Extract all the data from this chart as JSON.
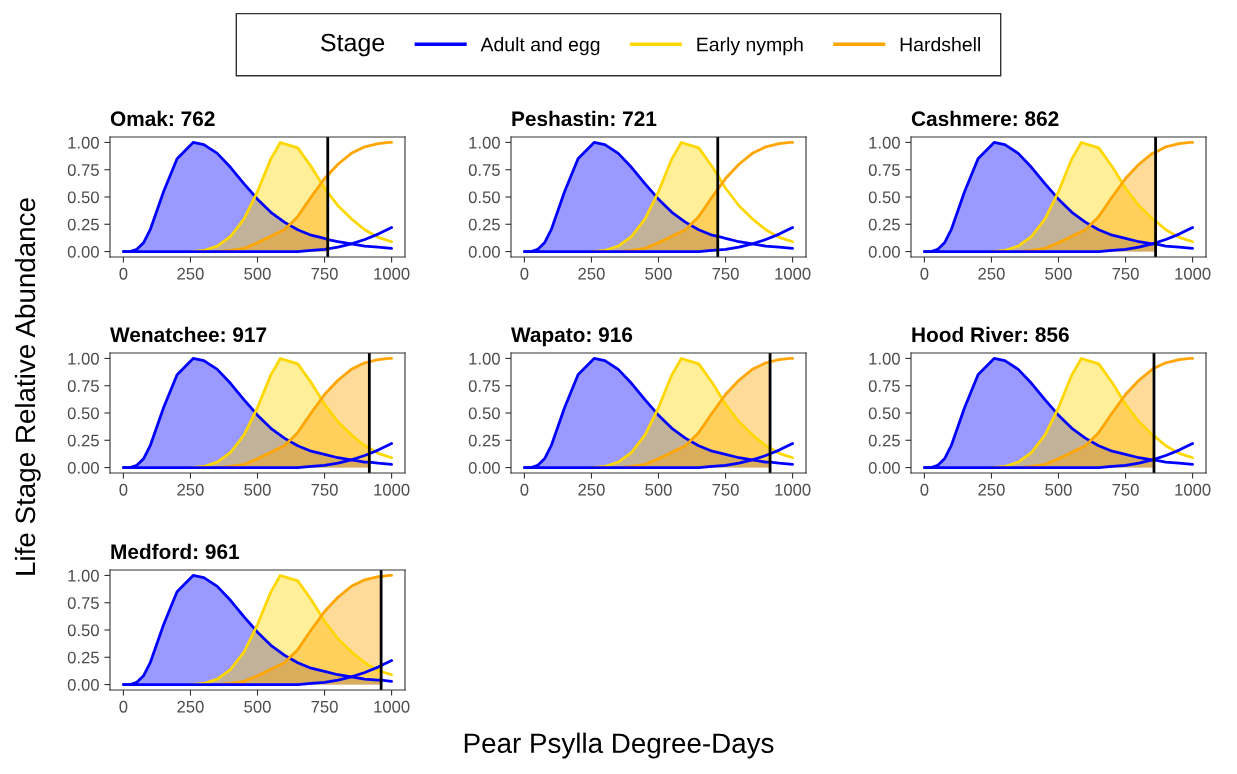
{
  "chart_data": [
    {
      "type": "area",
      "title": "Omak: 762",
      "xlabel": "Pear Psylla Degree-Days",
      "ylabel": "Life Stage Relative Abundance",
      "legend_title": "Stage",
      "legend": "top",
      "xlim": [
        -50,
        1050
      ],
      "xticks": [
        0,
        250,
        500,
        750,
        1000
      ],
      "ylim": [
        -0.05,
        1.05
      ],
      "yticks": [
        {
          "value": 0,
          "label": "0.00"
        },
        {
          "value": 0.25,
          "label": "0.25"
        },
        {
          "value": 0.5,
          "label": "0.50"
        },
        {
          "value": 0.75,
          "label": "0.75"
        },
        {
          "value": 1,
          "label": "1.00"
        }
      ],
      "ref_lines": [
        {
          "axis": "x",
          "value": 762,
          "color": "#000000"
        }
      ],
      "series": [
        {
          "name": "Adult and egg",
          "color": "#0000ff",
          "x": [
            0,
            25,
            50,
            75,
            100,
            150,
            200,
            260,
            300,
            350,
            400,
            450,
            500,
            550,
            600,
            650,
            700,
            750,
            762
          ],
          "values": [
            0,
            0,
            0.02,
            0.08,
            0.2,
            0.55,
            0.85,
            1.0,
            0.98,
            0.9,
            0.77,
            0.62,
            0.48,
            0.36,
            0.27,
            0.2,
            0.15,
            0.12,
            0.11
          ]
        },
        {
          "name": "Early nymph",
          "color": "#ffd700",
          "x": [
            250,
            300,
            350,
            400,
            450,
            500,
            550,
            585,
            650,
            700,
            750,
            762
          ],
          "values": [
            0,
            0.01,
            0.05,
            0.14,
            0.3,
            0.55,
            0.85,
            1.0,
            0.95,
            0.78,
            0.58,
            0.54
          ]
        },
        {
          "name": "Hardshell",
          "color": "#ffa500",
          "x": [
            350,
            400,
            450,
            500,
            550,
            600,
            650,
            700,
            750,
            762
          ],
          "values": [
            0,
            0.01,
            0.03,
            0.08,
            0.14,
            0.2,
            0.32,
            0.5,
            0.67,
            0.7
          ]
        },
        {
          "type": "line",
          "color": "#0000ff",
          "x": [
            762,
            800,
            850,
            900,
            950,
            1000
          ],
          "values": [
            0.11,
            0.09,
            0.07,
            0.05,
            0.04,
            0.03
          ]
        },
        {
          "type": "line",
          "color": "#ffd700",
          "x": [
            762,
            800,
            850,
            900,
            950,
            1000
          ],
          "values": [
            0.54,
            0.42,
            0.3,
            0.2,
            0.13,
            0.09
          ]
        },
        {
          "type": "line",
          "color": "#ffa500",
          "x": [
            762,
            800,
            850,
            900,
            950,
            990,
            1000
          ],
          "values": [
            0.7,
            0.8,
            0.9,
            0.96,
            0.99,
            1.0,
            1.0
          ]
        },
        {
          "type": "line",
          "color": "#0000ff",
          "x": [
            0,
            650,
            700,
            750,
            800,
            850,
            900,
            950,
            1000
          ],
          "values": [
            0,
            0,
            0.01,
            0.02,
            0.04,
            0.07,
            0.11,
            0.16,
            0.22
          ]
        }
      ]
    },
    {
      "type": "area",
      "title": "Peshastin: 721",
      "xlim": [
        -50,
        1050
      ],
      "xticks": [
        0,
        250,
        500,
        750,
        1000
      ],
      "ylim": [
        -0.05,
        1.05
      ],
      "yticks": [
        {
          "value": 0,
          "label": "0.00"
        },
        {
          "value": 0.25,
          "label": "0.25"
        },
        {
          "value": 0.5,
          "label": "0.50"
        },
        {
          "value": 0.75,
          "label": "0.75"
        },
        {
          "value": 1,
          "label": "1.00"
        }
      ],
      "ref_lines": [
        {
          "axis": "x",
          "value": 721,
          "color": "#000000"
        }
      ],
      "series": [
        {
          "color": "#0000ff",
          "x": [
            0,
            25,
            50,
            75,
            100,
            150,
            200,
            260,
            300,
            350,
            400,
            450,
            500,
            550,
            600,
            650,
            700,
            721
          ],
          "values": [
            0,
            0,
            0.02,
            0.08,
            0.2,
            0.55,
            0.85,
            1.0,
            0.98,
            0.9,
            0.77,
            0.62,
            0.48,
            0.36,
            0.27,
            0.2,
            0.15,
            0.14
          ]
        },
        {
          "color": "#ffd700",
          "x": [
            250,
            300,
            350,
            400,
            450,
            500,
            550,
            585,
            650,
            700,
            721
          ],
          "values": [
            0,
            0.01,
            0.05,
            0.14,
            0.3,
            0.55,
            0.85,
            1.0,
            0.95,
            0.78,
            0.7
          ]
        },
        {
          "color": "#ffa500",
          "x": [
            350,
            400,
            450,
            500,
            550,
            600,
            650,
            700,
            721
          ],
          "values": [
            0,
            0.01,
            0.03,
            0.08,
            0.14,
            0.2,
            0.32,
            0.5,
            0.57
          ]
        },
        {
          "type": "line",
          "color": "#0000ff",
          "x": [
            721,
            750,
            800,
            850,
            900,
            950,
            1000
          ],
          "values": [
            0.14,
            0.12,
            0.09,
            0.07,
            0.05,
            0.04,
            0.03
          ]
        },
        {
          "type": "line",
          "color": "#ffd700",
          "x": [
            721,
            750,
            800,
            850,
            900,
            950,
            1000
          ],
          "values": [
            0.7,
            0.58,
            0.42,
            0.3,
            0.2,
            0.13,
            0.09
          ]
        },
        {
          "type": "line",
          "color": "#ffa500",
          "x": [
            721,
            750,
            800,
            850,
            900,
            950,
            990,
            1000
          ],
          "values": [
            0.57,
            0.67,
            0.8,
            0.9,
            0.96,
            0.99,
            1.0,
            1.0
          ]
        },
        {
          "type": "line",
          "color": "#0000ff",
          "x": [
            0,
            650,
            700,
            750,
            800,
            850,
            900,
            950,
            1000
          ],
          "values": [
            0,
            0,
            0.01,
            0.02,
            0.04,
            0.07,
            0.11,
            0.16,
            0.22
          ]
        }
      ]
    },
    {
      "type": "area",
      "title": "Cashmere: 862",
      "xlim": [
        -50,
        1050
      ],
      "xticks": [
        0,
        250,
        500,
        750,
        1000
      ],
      "ylim": [
        -0.05,
        1.05
      ],
      "yticks": [
        {
          "value": 0,
          "label": "0.00"
        },
        {
          "value": 0.25,
          "label": "0.25"
        },
        {
          "value": 0.5,
          "label": "0.50"
        },
        {
          "value": 0.75,
          "label": "0.75"
        },
        {
          "value": 1,
          "label": "1.00"
        }
      ],
      "ref_lines": [
        {
          "axis": "x",
          "value": 862,
          "color": "#000000"
        }
      ],
      "series": [
        {
          "color": "#0000ff",
          "x": [
            0,
            25,
            50,
            75,
            100,
            150,
            200,
            260,
            300,
            350,
            400,
            450,
            500,
            550,
            600,
            650,
            700,
            750,
            800,
            850,
            862
          ],
          "values": [
            0,
            0,
            0.02,
            0.08,
            0.2,
            0.55,
            0.85,
            1.0,
            0.98,
            0.9,
            0.77,
            0.62,
            0.48,
            0.36,
            0.27,
            0.2,
            0.15,
            0.12,
            0.09,
            0.07,
            0.07
          ]
        },
        {
          "color": "#ffd700",
          "x": [
            250,
            300,
            350,
            400,
            450,
            500,
            550,
            585,
            650,
            700,
            750,
            800,
            850,
            862
          ],
          "values": [
            0,
            0.01,
            0.05,
            0.14,
            0.3,
            0.55,
            0.85,
            1.0,
            0.95,
            0.78,
            0.58,
            0.42,
            0.3,
            0.28
          ]
        },
        {
          "color": "#ffa500",
          "x": [
            350,
            400,
            450,
            500,
            550,
            600,
            650,
            700,
            750,
            800,
            850,
            862
          ],
          "values": [
            0,
            0.01,
            0.03,
            0.08,
            0.14,
            0.2,
            0.32,
            0.5,
            0.67,
            0.8,
            0.9,
            0.91
          ]
        },
        {
          "type": "line",
          "color": "#0000ff",
          "x": [
            862,
            900,
            950,
            1000
          ],
          "values": [
            0.07,
            0.05,
            0.04,
            0.03
          ]
        },
        {
          "type": "line",
          "color": "#ffd700",
          "x": [
            862,
            900,
            950,
            1000
          ],
          "values": [
            0.28,
            0.2,
            0.13,
            0.09
          ]
        },
        {
          "type": "line",
          "color": "#ffa500",
          "x": [
            862,
            900,
            950,
            990,
            1000
          ],
          "values": [
            0.91,
            0.96,
            0.99,
            1.0,
            1.0
          ]
        },
        {
          "type": "line",
          "color": "#0000ff",
          "x": [
            0,
            650,
            700,
            750,
            800,
            850,
            900,
            950,
            1000
          ],
          "values": [
            0,
            0,
            0.01,
            0.02,
            0.04,
            0.07,
            0.11,
            0.16,
            0.22
          ]
        }
      ]
    },
    {
      "type": "area",
      "title": "Wenatchee: 917",
      "xlim": [
        -50,
        1050
      ],
      "xticks": [
        0,
        250,
        500,
        750,
        1000
      ],
      "ylim": [
        -0.05,
        1.05
      ],
      "yticks": [
        {
          "value": 0,
          "label": "0.00"
        },
        {
          "value": 0.25,
          "label": "0.25"
        },
        {
          "value": 0.5,
          "label": "0.50"
        },
        {
          "value": 0.75,
          "label": "0.75"
        },
        {
          "value": 1,
          "label": "1.00"
        }
      ],
      "ref_lines": [
        {
          "axis": "x",
          "value": 917,
          "color": "#000000"
        }
      ],
      "series": [
        {
          "color": "#0000ff",
          "x": [
            0,
            25,
            50,
            75,
            100,
            150,
            200,
            260,
            300,
            350,
            400,
            450,
            500,
            550,
            600,
            650,
            700,
            750,
            800,
            850,
            900,
            917
          ],
          "values": [
            0,
            0,
            0.02,
            0.08,
            0.2,
            0.55,
            0.85,
            1.0,
            0.98,
            0.9,
            0.77,
            0.62,
            0.48,
            0.36,
            0.27,
            0.2,
            0.15,
            0.12,
            0.09,
            0.07,
            0.05,
            0.05
          ]
        },
        {
          "color": "#ffd700",
          "x": [
            250,
            300,
            350,
            400,
            450,
            500,
            550,
            585,
            650,
            700,
            750,
            800,
            850,
            900,
            917
          ],
          "values": [
            0,
            0.01,
            0.05,
            0.14,
            0.3,
            0.55,
            0.85,
            1.0,
            0.95,
            0.78,
            0.58,
            0.42,
            0.3,
            0.2,
            0.18
          ]
        },
        {
          "color": "#ffa500",
          "x": [
            350,
            400,
            450,
            500,
            550,
            600,
            650,
            700,
            750,
            800,
            850,
            900,
            917
          ],
          "values": [
            0,
            0.01,
            0.03,
            0.08,
            0.14,
            0.2,
            0.32,
            0.5,
            0.67,
            0.8,
            0.9,
            0.96,
            0.97
          ]
        },
        {
          "type": "line",
          "color": "#0000ff",
          "x": [
            917,
            950,
            1000
          ],
          "values": [
            0.05,
            0.04,
            0.03
          ]
        },
        {
          "type": "line",
          "color": "#ffd700",
          "x": [
            917,
            950,
            1000
          ],
          "values": [
            0.18,
            0.13,
            0.09
          ]
        },
        {
          "type": "line",
          "color": "#ffa500",
          "x": [
            917,
            950,
            990,
            1000
          ],
          "values": [
            0.97,
            0.99,
            1.0,
            1.0
          ]
        },
        {
          "type": "line",
          "color": "#0000ff",
          "x": [
            0,
            650,
            700,
            750,
            800,
            850,
            900,
            950,
            1000
          ],
          "values": [
            0,
            0,
            0.01,
            0.02,
            0.04,
            0.07,
            0.11,
            0.16,
            0.22
          ]
        }
      ]
    },
    {
      "type": "area",
      "title": "Wapato: 916",
      "xlim": [
        -50,
        1050
      ],
      "xticks": [
        0,
        250,
        500,
        750,
        1000
      ],
      "ylim": [
        -0.05,
        1.05
      ],
      "yticks": [
        {
          "value": 0,
          "label": "0.00"
        },
        {
          "value": 0.25,
          "label": "0.25"
        },
        {
          "value": 0.5,
          "label": "0.50"
        },
        {
          "value": 0.75,
          "label": "0.75"
        },
        {
          "value": 1,
          "label": "1.00"
        }
      ],
      "ref_lines": [
        {
          "axis": "x",
          "value": 916,
          "color": "#000000"
        }
      ],
      "series": [
        {
          "color": "#0000ff",
          "x": [
            0,
            25,
            50,
            75,
            100,
            150,
            200,
            260,
            300,
            350,
            400,
            450,
            500,
            550,
            600,
            650,
            700,
            750,
            800,
            850,
            900,
            916
          ],
          "values": [
            0,
            0,
            0.02,
            0.08,
            0.2,
            0.55,
            0.85,
            1.0,
            0.98,
            0.9,
            0.77,
            0.62,
            0.48,
            0.36,
            0.27,
            0.2,
            0.15,
            0.12,
            0.09,
            0.07,
            0.05,
            0.05
          ]
        },
        {
          "color": "#ffd700",
          "x": [
            250,
            300,
            350,
            400,
            450,
            500,
            550,
            585,
            650,
            700,
            750,
            800,
            850,
            900,
            916
          ],
          "values": [
            0,
            0.01,
            0.05,
            0.14,
            0.3,
            0.55,
            0.85,
            1.0,
            0.95,
            0.78,
            0.58,
            0.42,
            0.3,
            0.2,
            0.18
          ]
        },
        {
          "color": "#ffa500",
          "x": [
            350,
            400,
            450,
            500,
            550,
            600,
            650,
            700,
            750,
            800,
            850,
            900,
            916
          ],
          "values": [
            0,
            0.01,
            0.03,
            0.08,
            0.14,
            0.2,
            0.32,
            0.5,
            0.67,
            0.8,
            0.9,
            0.96,
            0.97
          ]
        },
        {
          "type": "line",
          "color": "#0000ff",
          "x": [
            916,
            950,
            1000
          ],
          "values": [
            0.05,
            0.04,
            0.03
          ]
        },
        {
          "type": "line",
          "color": "#ffd700",
          "x": [
            916,
            950,
            1000
          ],
          "values": [
            0.18,
            0.13,
            0.09
          ]
        },
        {
          "type": "line",
          "color": "#ffa500",
          "x": [
            916,
            950,
            990,
            1000
          ],
          "values": [
            0.97,
            0.99,
            1.0,
            1.0
          ]
        },
        {
          "type": "line",
          "color": "#0000ff",
          "x": [
            0,
            650,
            700,
            750,
            800,
            850,
            900,
            950,
            1000
          ],
          "values": [
            0,
            0,
            0.01,
            0.02,
            0.04,
            0.07,
            0.11,
            0.16,
            0.22
          ]
        }
      ]
    },
    {
      "type": "area",
      "title": "Hood River: 856",
      "xlim": [
        -50,
        1050
      ],
      "xticks": [
        0,
        250,
        500,
        750,
        1000
      ],
      "ylim": [
        -0.05,
        1.05
      ],
      "yticks": [
        {
          "value": 0,
          "label": "0.00"
        },
        {
          "value": 0.25,
          "label": "0.25"
        },
        {
          "value": 0.5,
          "label": "0.50"
        },
        {
          "value": 0.75,
          "label": "0.75"
        },
        {
          "value": 1,
          "label": "1.00"
        }
      ],
      "ref_lines": [
        {
          "axis": "x",
          "value": 856,
          "color": "#000000"
        }
      ],
      "series": [
        {
          "color": "#0000ff",
          "x": [
            0,
            25,
            50,
            75,
            100,
            150,
            200,
            260,
            300,
            350,
            400,
            450,
            500,
            550,
            600,
            650,
            700,
            750,
            800,
            850,
            856
          ],
          "values": [
            0,
            0,
            0.02,
            0.08,
            0.2,
            0.55,
            0.85,
            1.0,
            0.98,
            0.9,
            0.77,
            0.62,
            0.48,
            0.36,
            0.27,
            0.2,
            0.15,
            0.12,
            0.09,
            0.07,
            0.07
          ]
        },
        {
          "color": "#ffd700",
          "x": [
            250,
            300,
            350,
            400,
            450,
            500,
            550,
            585,
            650,
            700,
            750,
            800,
            850,
            856
          ],
          "values": [
            0,
            0.01,
            0.05,
            0.14,
            0.3,
            0.55,
            0.85,
            1.0,
            0.95,
            0.78,
            0.58,
            0.42,
            0.3,
            0.29
          ]
        },
        {
          "color": "#ffa500",
          "x": [
            350,
            400,
            450,
            500,
            550,
            600,
            650,
            700,
            750,
            800,
            850,
            856
          ],
          "values": [
            0,
            0.01,
            0.03,
            0.08,
            0.14,
            0.2,
            0.32,
            0.5,
            0.67,
            0.8,
            0.9,
            0.91
          ]
        },
        {
          "type": "line",
          "color": "#0000ff",
          "x": [
            856,
            900,
            950,
            1000
          ],
          "values": [
            0.07,
            0.05,
            0.04,
            0.03
          ]
        },
        {
          "type": "line",
          "color": "#ffd700",
          "x": [
            856,
            900,
            950,
            1000
          ],
          "values": [
            0.29,
            0.2,
            0.13,
            0.09
          ]
        },
        {
          "type": "line",
          "color": "#ffa500",
          "x": [
            856,
            900,
            950,
            990,
            1000
          ],
          "values": [
            0.91,
            0.96,
            0.99,
            1.0,
            1.0
          ]
        },
        {
          "type": "line",
          "color": "#0000ff",
          "x": [
            0,
            650,
            700,
            750,
            800,
            850,
            900,
            950,
            1000
          ],
          "values": [
            0,
            0,
            0.01,
            0.02,
            0.04,
            0.07,
            0.11,
            0.16,
            0.22
          ]
        }
      ]
    },
    {
      "type": "area",
      "title": "Medford: 961",
      "xlim": [
        -50,
        1050
      ],
      "xticks": [
        0,
        250,
        500,
        750,
        1000
      ],
      "ylim": [
        -0.05,
        1.05
      ],
      "yticks": [
        {
          "value": 0,
          "label": "0.00"
        },
        {
          "value": 0.25,
          "label": "0.25"
        },
        {
          "value": 0.5,
          "label": "0.50"
        },
        {
          "value": 0.75,
          "label": "0.75"
        },
        {
          "value": 1,
          "label": "1.00"
        }
      ],
      "ref_lines": [
        {
          "axis": "x",
          "value": 961,
          "color": "#000000"
        }
      ],
      "series": [
        {
          "color": "#0000ff",
          "x": [
            0,
            25,
            50,
            75,
            100,
            150,
            200,
            260,
            300,
            350,
            400,
            450,
            500,
            550,
            600,
            650,
            700,
            750,
            800,
            850,
            900,
            950,
            961
          ],
          "values": [
            0,
            0,
            0.02,
            0.08,
            0.2,
            0.55,
            0.85,
            1.0,
            0.98,
            0.9,
            0.77,
            0.62,
            0.48,
            0.36,
            0.27,
            0.2,
            0.15,
            0.12,
            0.09,
            0.07,
            0.05,
            0.04,
            0.04
          ]
        },
        {
          "color": "#ffd700",
          "x": [
            250,
            300,
            350,
            400,
            450,
            500,
            550,
            585,
            650,
            700,
            750,
            800,
            850,
            900,
            950,
            961
          ],
          "values": [
            0,
            0.01,
            0.05,
            0.14,
            0.3,
            0.55,
            0.85,
            1.0,
            0.95,
            0.78,
            0.58,
            0.42,
            0.3,
            0.2,
            0.13,
            0.12
          ]
        },
        {
          "color": "#ffa500",
          "x": [
            350,
            400,
            450,
            500,
            550,
            600,
            650,
            700,
            750,
            800,
            850,
            900,
            950,
            961
          ],
          "values": [
            0,
            0.01,
            0.03,
            0.08,
            0.14,
            0.2,
            0.32,
            0.5,
            0.67,
            0.8,
            0.9,
            0.96,
            0.99,
            0.99
          ]
        },
        {
          "type": "line",
          "color": "#0000ff",
          "x": [
            961,
            1000
          ],
          "values": [
            0.04,
            0.03
          ]
        },
        {
          "type": "line",
          "color": "#ffd700",
          "x": [
            961,
            1000
          ],
          "values": [
            0.12,
            0.09
          ]
        },
        {
          "type": "line",
          "color": "#ffa500",
          "x": [
            961,
            990,
            1000
          ],
          "values": [
            0.99,
            1.0,
            1.0
          ]
        },
        {
          "type": "line",
          "color": "#0000ff",
          "x": [
            0,
            650,
            700,
            750,
            800,
            850,
            900,
            950,
            1000
          ],
          "values": [
            0,
            0,
            0.01,
            0.02,
            0.04,
            0.07,
            0.11,
            0.16,
            0.22
          ]
        }
      ]
    }
  ]
}
